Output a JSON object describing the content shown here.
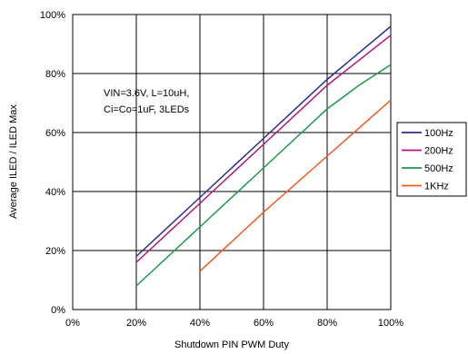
{
  "chart_data": {
    "type": "line",
    "title": "",
    "xlabel": "Shutdown PIN PWM Duty",
    "ylabel": "Average ILED / ILED Max",
    "xlim": [
      0,
      100
    ],
    "ylim": [
      0,
      100
    ],
    "x_ticks": [
      "0%",
      "20%",
      "40%",
      "60%",
      "80%",
      "100%"
    ],
    "y_ticks": [
      "0%",
      "20%",
      "40%",
      "60%",
      "80%",
      "100%"
    ],
    "grid": true,
    "legend_position": "right",
    "annotation": [
      "VIN=3.6V, L=10uH,",
      "Ci=Co=1uF, 3LEDs"
    ],
    "series": [
      {
        "name": "100Hz",
        "color": "#2b2b8f",
        "x": [
          20,
          40,
          60,
          80,
          100
        ],
        "y": [
          18,
          38,
          58,
          78,
          96
        ]
      },
      {
        "name": "200Hz",
        "color": "#b0157a",
        "x": [
          20,
          40,
          60,
          80,
          100
        ],
        "y": [
          16,
          36,
          56,
          76,
          93
        ]
      },
      {
        "name": "500Hz",
        "color": "#1a9a48",
        "x": [
          20,
          40,
          60,
          80,
          90,
          100
        ],
        "y": [
          8,
          28,
          48,
          68,
          76,
          83
        ]
      },
      {
        "name": "1KHz",
        "color": "#f05a1e",
        "x": [
          40,
          60,
          80,
          100
        ],
        "y": [
          13,
          33,
          52,
          71
        ]
      }
    ]
  }
}
